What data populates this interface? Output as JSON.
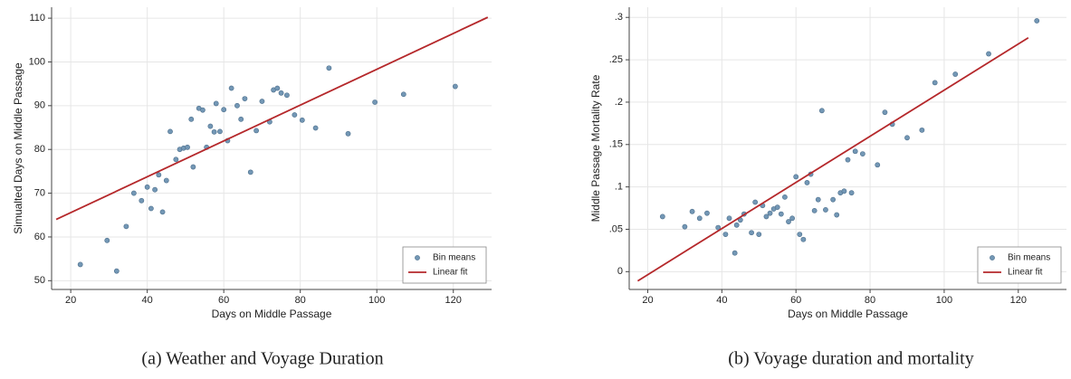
{
  "chart_data": [
    {
      "type": "scatter",
      "caption": "(a) Weather and Voyage Duration",
      "x_label": "Days on Middle Passage",
      "y_label": "Simualted Days on Middle Passage",
      "xlim": [
        15,
        130
      ],
      "ylim": [
        48,
        112.5
      ],
      "xticks": [
        20,
        40,
        60,
        80,
        100,
        120
      ],
      "yticks": [
        50,
        60,
        70,
        80,
        90,
        100,
        110
      ],
      "grid": true,
      "legend": "bottom-right",
      "series": [
        {
          "name": "Bin means",
          "kind": "markers",
          "color": "#7397b5",
          "x": [
            22.5,
            29.5,
            32,
            34.5,
            36.5,
            38.5,
            40,
            41,
            42,
            43,
            44,
            45,
            46,
            47.5,
            48.5,
            49.5,
            50.5,
            51.5,
            52,
            53.5,
            54.5,
            55.5,
            56.5,
            57.5,
            58,
            59,
            60,
            61,
            62,
            63.5,
            64.5,
            65.5,
            67,
            68.5,
            70,
            72,
            73,
            74,
            75,
            76.5,
            78.5,
            80.5,
            84,
            87.5,
            92.5,
            99.5,
            107,
            120.5
          ],
          "values": [
            53.7,
            59.2,
            52.2,
            62.4,
            70,
            68.3,
            71.4,
            66.5,
            70.8,
            74.2,
            65.7,
            72.9,
            84.1,
            77.7,
            80,
            80.3,
            80.5,
            86.9,
            76,
            89.4,
            89,
            80.5,
            85.3,
            84,
            90.5,
            84.1,
            89.1,
            82,
            94,
            90,
            86.9,
            91.6,
            74.8,
            84.3,
            91,
            86.3,
            93.6,
            94,
            92.9,
            92.4,
            87.9,
            86.7,
            84.9,
            98.6,
            83.6,
            90.8,
            92.6,
            94.4
          ]
        },
        {
          "name": "Linear fit",
          "kind": "line",
          "color": "#b5282b",
          "x": [
            16.2,
            129
          ],
          "values": [
            64,
            110.2
          ]
        }
      ]
    },
    {
      "type": "scatter",
      "caption": "(b) Voyage duration and mortality",
      "x_label": "Days on Middle Passage",
      "y_label": "Middle Passage Mortality Rate",
      "xlim": [
        15,
        133
      ],
      "ylim": [
        -0.021,
        0.312
      ],
      "xticks": [
        20,
        40,
        60,
        80,
        100,
        120
      ],
      "yticks": [
        0,
        {
          "value": 0.05,
          "label": ".05"
        },
        {
          "value": 0.1,
          "label": ".1"
        },
        {
          "value": 0.15,
          "label": ".15"
        },
        {
          "value": 0.2,
          "label": ".2"
        },
        {
          "value": 0.25,
          "label": ".25"
        },
        {
          "value": 0.3,
          "label": ".3"
        }
      ],
      "grid": true,
      "legend": "bottom-right",
      "series": [
        {
          "name": "Bin means",
          "kind": "markers",
          "color": "#7397b5",
          "x": [
            24,
            30,
            32,
            34,
            36,
            39,
            41,
            42,
            43.5,
            44,
            45,
            46,
            48,
            49,
            50,
            51,
            52,
            53,
            54,
            55,
            56,
            57,
            58,
            59,
            60,
            61,
            62,
            63,
            64,
            65,
            66,
            67,
            68,
            70,
            71,
            72,
            73,
            74,
            75,
            76,
            78,
            82,
            84,
            86,
            90,
            94,
            97.5,
            103,
            112,
            125
          ],
          "values": [
            0.065,
            0.053,
            0.071,
            0.063,
            0.069,
            0.052,
            0.044,
            0.063,
            0.022,
            0.055,
            0.061,
            0.068,
            0.046,
            0.082,
            0.044,
            0.078,
            0.065,
            0.069,
            0.074,
            0.076,
            0.068,
            0.088,
            0.059,
            0.063,
            0.112,
            0.044,
            0.038,
            0.105,
            0.115,
            0.072,
            0.085,
            0.19,
            0.073,
            0.085,
            0.067,
            0.093,
            0.095,
            0.132,
            0.093,
            0.142,
            0.139,
            0.126,
            0.188,
            0.174,
            0.158,
            0.167,
            0.223,
            0.233,
            0.257,
            0.296
          ]
        },
        {
          "name": "Linear fit",
          "kind": "line",
          "color": "#b5282b",
          "x": [
            17.3,
            122.7
          ],
          "values": [
            -0.011,
            0.276
          ]
        }
      ]
    }
  ]
}
